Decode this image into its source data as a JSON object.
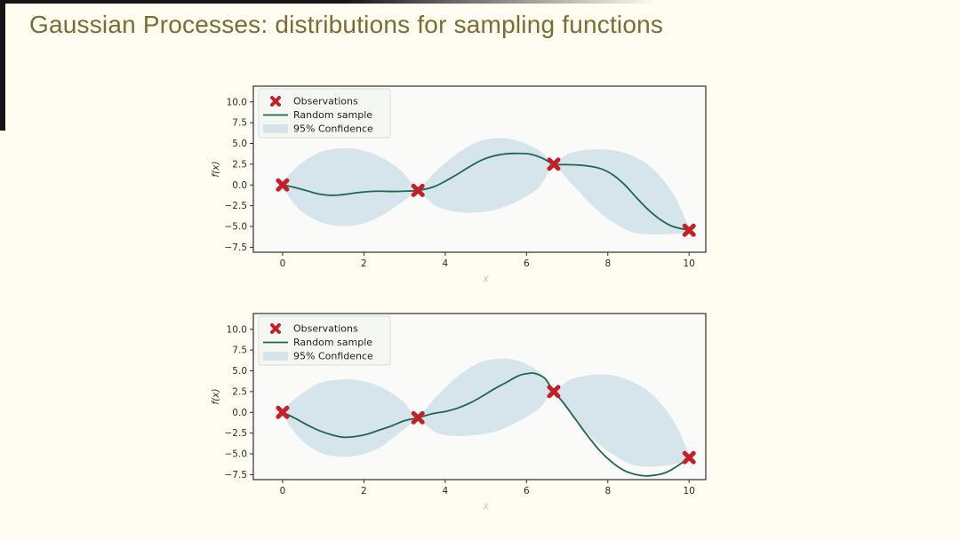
{
  "slide": {
    "title": "Gaussian Processes: distributions for sampling functions",
    "title_color": "#7b6c31",
    "background_color": "#fffdf2"
  },
  "legend": {
    "items": [
      {
        "label": "Observations",
        "glyph": "x-marker",
        "color": "#c32127"
      },
      {
        "label": "Random sample",
        "glyph": "line",
        "color": "#1f6650"
      },
      {
        "label": "95% Confidence",
        "glyph": "patch",
        "color": "#cfe0ea"
      }
    ]
  },
  "axes": {
    "ylabel": "f(x)",
    "xlabel": "x",
    "xtick_labels": [
      "0",
      "2",
      "4",
      "6",
      "8",
      "10"
    ],
    "ytick_labels": [
      "10.0",
      "7.5",
      "5.0",
      "2.5",
      "0.0",
      "−2.5",
      "−5.0",
      "−7.5"
    ]
  },
  "chart_data": [
    {
      "type": "line",
      "xlabel": "x",
      "ylabel": "f(x)",
      "xlim": [
        -0.72,
        10.41
      ],
      "ylim": [
        -8.1,
        11.9
      ],
      "xticks": [
        0,
        2,
        4,
        6,
        8,
        10
      ],
      "yticks": [
        10.0,
        7.5,
        5.0,
        2.5,
        0.0,
        -2.5,
        -5.0,
        -7.5
      ],
      "grid": false,
      "legend_position": "upper left",
      "band": {
        "label": "95% Confidence",
        "color": "#cfe0ea",
        "x": [
          0,
          0.4,
          0.9,
          1.4,
          1.9,
          2.4,
          2.9,
          3.33,
          3.8,
          4.3,
          4.8,
          5.3,
          5.8,
          6.3,
          6.67,
          7.1,
          7.6,
          8.1,
          8.6,
          9.1,
          9.6,
          10
        ],
        "upper": [
          0.35,
          2.4,
          3.9,
          4.4,
          4.25,
          3.4,
          1.8,
          -0.25,
          1.8,
          3.8,
          5.2,
          5.65,
          5.3,
          4.2,
          2.9,
          3.9,
          4.25,
          4.2,
          3.5,
          2.0,
          -1.0,
          -5.1
        ],
        "lower": [
          -0.35,
          -2.9,
          -4.4,
          -4.95,
          -4.75,
          -3.8,
          -2.2,
          -1.05,
          -2.6,
          -3.25,
          -3.3,
          -2.9,
          -1.9,
          -0.3,
          2.1,
          0.2,
          -2.4,
          -4.4,
          -5.7,
          -5.95,
          -5.9,
          -5.8
        ]
      },
      "sample": {
        "label": "Random sample",
        "color": "#1f6650",
        "x": [
          0,
          0.3,
          0.6,
          0.9,
          1.2,
          1.5,
          1.8,
          2.1,
          2.4,
          2.7,
          3.0,
          3.33,
          3.7,
          4.0,
          4.3,
          4.6,
          4.9,
          5.2,
          5.5,
          5.8,
          6.1,
          6.4,
          6.67,
          7.0,
          7.4,
          7.8,
          8.1,
          8.4,
          8.7,
          9.0,
          9.3,
          9.6,
          10.0
        ],
        "y": [
          0.0,
          -0.3,
          -0.7,
          -1.1,
          -1.25,
          -1.15,
          -0.95,
          -0.8,
          -0.75,
          -0.78,
          -0.75,
          -0.65,
          -0.25,
          0.45,
          1.3,
          2.2,
          3.0,
          3.5,
          3.75,
          3.8,
          3.7,
          3.2,
          2.5,
          2.45,
          2.35,
          2.0,
          1.3,
          0.1,
          -1.5,
          -3.0,
          -4.2,
          -5.0,
          -5.45
        ]
      },
      "observations": {
        "label": "Observations",
        "color": "#c32127",
        "x": [
          0,
          3.33,
          6.67,
          10
        ],
        "y": [
          0.0,
          -0.65,
          2.5,
          -5.45
        ]
      }
    },
    {
      "type": "line",
      "xlabel": "x",
      "ylabel": "f(x)",
      "xlim": [
        -0.72,
        10.41
      ],
      "ylim": [
        -8.1,
        11.9
      ],
      "xticks": [
        0,
        2,
        4,
        6,
        8,
        10
      ],
      "yticks": [
        10.0,
        7.5,
        5.0,
        2.5,
        0.0,
        -2.5,
        -5.0,
        -7.5
      ],
      "grid": false,
      "legend_position": "upper left",
      "band": {
        "label": "95% Confidence",
        "color": "#cfe0ea",
        "x": [
          0,
          0.4,
          0.9,
          1.4,
          1.9,
          2.4,
          2.9,
          3.33,
          3.8,
          4.3,
          4.8,
          5.3,
          5.8,
          6.3,
          6.67,
          7.1,
          7.6,
          8.1,
          8.6,
          9.1,
          9.6,
          10
        ],
        "upper": [
          0.35,
          2.0,
          3.5,
          3.95,
          3.85,
          3.1,
          1.6,
          -0.25,
          2.0,
          4.3,
          5.9,
          6.45,
          6.2,
          4.9,
          2.9,
          4.0,
          4.5,
          4.45,
          3.7,
          2.1,
          -0.9,
          -5.0
        ],
        "lower": [
          -0.35,
          -3.0,
          -4.8,
          -5.35,
          -5.15,
          -4.2,
          -2.4,
          -1.05,
          -2.5,
          -2.85,
          -2.7,
          -2.2,
          -1.1,
          0.4,
          2.1,
          -0.3,
          -3.0,
          -5.0,
          -6.3,
          -6.55,
          -6.3,
          -5.9
        ]
      },
      "sample": {
        "label": "Random sample",
        "color": "#1f6650",
        "x": [
          0,
          0.3,
          0.6,
          0.9,
          1.2,
          1.5,
          1.8,
          2.1,
          2.4,
          2.7,
          3.0,
          3.33,
          3.7,
          4.0,
          4.3,
          4.6,
          4.9,
          5.2,
          5.5,
          5.8,
          6.0,
          6.2,
          6.45,
          6.67,
          6.9,
          7.2,
          7.5,
          7.8,
          8.1,
          8.4,
          8.7,
          9.0,
          9.4,
          9.7,
          10.0
        ],
        "y": [
          0.0,
          -0.7,
          -1.5,
          -2.2,
          -2.7,
          -3.0,
          -2.9,
          -2.6,
          -2.1,
          -1.6,
          -1.0,
          -0.65,
          -0.15,
          0.1,
          0.5,
          1.1,
          1.9,
          2.8,
          3.6,
          4.4,
          4.65,
          4.7,
          4.1,
          2.5,
          1.2,
          -0.8,
          -2.8,
          -4.6,
          -6.0,
          -7.0,
          -7.5,
          -7.65,
          -7.3,
          -6.5,
          -5.45
        ]
      },
      "observations": {
        "label": "Observations",
        "color": "#c32127",
        "x": [
          0,
          3.33,
          6.67,
          10
        ],
        "y": [
          0.0,
          -0.65,
          2.5,
          -5.45
        ]
      }
    }
  ]
}
